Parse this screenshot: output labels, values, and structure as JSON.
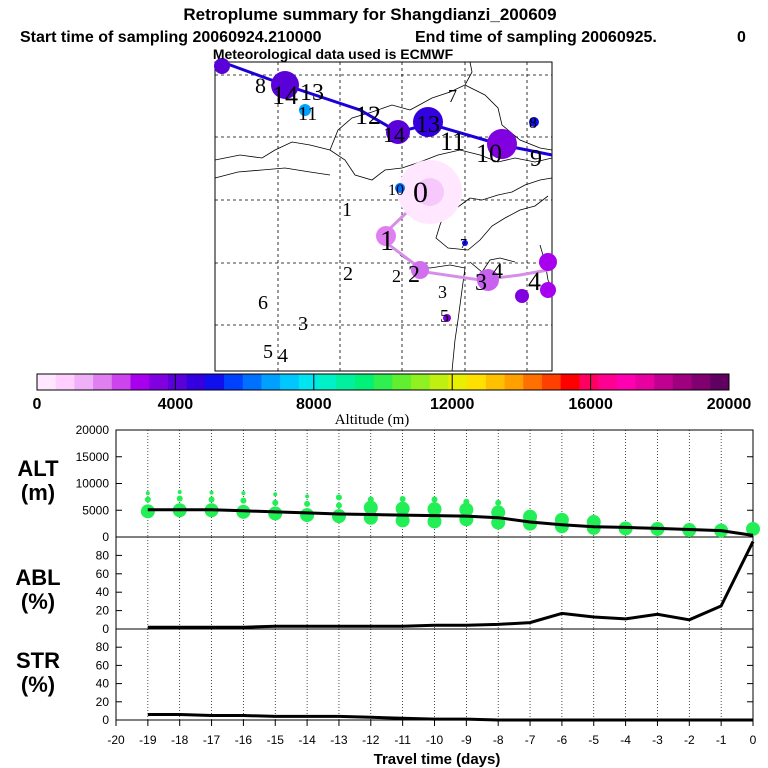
{
  "header": {
    "title": "Retroplume summary for Shangdianzi_200609",
    "start_label": "Start time of sampling 20060924.210000",
    "end_label": "End time of sampling 20060925.",
    "end_tail": "0",
    "met_label": "Meteorological data used is ECMWF"
  },
  "colors": {
    "main_track": "#1a00d9",
    "minor_track": "#d68fe8",
    "scale": [
      "#ffe8ff",
      "#ffd0ff",
      "#f0b0f8",
      "#e080f0",
      "#cc44ee",
      "#a800ee",
      "#8000e0",
      "#5a00d8",
      "#3500e0",
      "#1010ee",
      "#0040ff",
      "#0070ff",
      "#00a0ff",
      "#00c8ff",
      "#00e6f0",
      "#00f0c8",
      "#00f0a0",
      "#00f078",
      "#30f050",
      "#60f030",
      "#90f020",
      "#c0f010",
      "#e8f000",
      "#ffe000",
      "#ffc000",
      "#ffa000",
      "#ff7000",
      "#ff4000",
      "#ff0000",
      "#ff0060",
      "#ff0090",
      "#ff00b0",
      "#e800a0",
      "#c00090",
      "#a00080",
      "#800070",
      "#600060"
    ],
    "alt_dots": "#22ee55",
    "line": "#000000"
  },
  "map": {
    "main_labels": [
      "8",
      "14",
      "13",
      "12",
      "11",
      "11",
      "10",
      "9",
      "13",
      "8"
    ],
    "main_dots": [
      "day8",
      "day14",
      "day13",
      "day12",
      "day11",
      "day10",
      "day9"
    ],
    "minor_labels": [
      "0",
      "1",
      "2",
      "2",
      "3",
      "3",
      "4",
      "4",
      "5",
      "10",
      "11",
      "7",
      "7"
    ],
    "stray_labels": [
      "1",
      "2",
      "3",
      "4",
      "5",
      "6",
      "7"
    ]
  },
  "colorbar": {
    "ticks": [
      "0",
      "4000",
      "8000",
      "12000",
      "16000",
      "20000"
    ],
    "label": "Altitude (m)"
  },
  "panels": {
    "alt": {
      "label": "ALT",
      "unit": "(m)",
      "ticks": [
        "20000",
        "15000",
        "10000",
        "5000",
        "0"
      ]
    },
    "abl": {
      "label": "ABL",
      "unit": "(%)",
      "ticks": [
        "80",
        "60",
        "40",
        "20",
        "0"
      ]
    },
    "str": {
      "label": "STR",
      "unit": "(%)",
      "ticks": [
        "80",
        "60",
        "40",
        "20",
        "0"
      ]
    }
  },
  "xaxis": {
    "label": "Travel time (days)",
    "ticks": [
      "-20",
      "-19",
      "-18",
      "-17",
      "-16",
      "-15",
      "-14",
      "-13",
      "-12",
      "-11",
      "-10",
      "-9",
      "-8",
      "-7",
      "-6",
      "-5",
      "-4",
      "-3",
      "-2",
      "-1",
      "0"
    ]
  },
  "chart_data": [
    {
      "type": "line",
      "title": "ALT",
      "ylabel": "ALT (m)",
      "xlabel": "Travel time (days)",
      "xlim": [
        -20,
        0
      ],
      "ylim": [
        0,
        20000
      ],
      "x": [
        -19,
        -18,
        -17,
        -16,
        -15,
        -14,
        -13,
        -12,
        -11,
        -10,
        -9,
        -8,
        -7,
        -6,
        -5,
        -4,
        -3,
        -2,
        -1,
        0
      ],
      "series": [
        {
          "name": "Mean altitude",
          "values": [
            5100,
            5100,
            5100,
            4900,
            4700,
            4500,
            4300,
            4200,
            4100,
            4000,
            3900,
            3600,
            2800,
            2300,
            1900,
            1800,
            1600,
            1400,
            1200,
            300
          ]
        }
      ],
      "scatter": {
        "name": "Plume altitude distribution",
        "values": [
          [
            -19,
            4800
          ],
          [
            -19,
            7000
          ],
          [
            -19,
            8200
          ],
          [
            -18,
            5000
          ],
          [
            -18,
            7200
          ],
          [
            -18,
            8400
          ],
          [
            -17,
            5000
          ],
          [
            -17,
            7000
          ],
          [
            -17,
            8300
          ],
          [
            -16,
            4700
          ],
          [
            -16,
            6800
          ],
          [
            -16,
            8200
          ],
          [
            -15,
            4400
          ],
          [
            -15,
            6400
          ],
          [
            -15,
            8000
          ],
          [
            -14,
            4100
          ],
          [
            -14,
            6200
          ],
          [
            -14,
            7600
          ],
          [
            -13,
            3900
          ],
          [
            -13,
            5900
          ],
          [
            -13,
            7400
          ],
          [
            -12,
            3600
          ],
          [
            -12,
            5500
          ],
          [
            -12,
            7000
          ],
          [
            -11,
            3100
          ],
          [
            -11,
            5300
          ],
          [
            -11,
            7100
          ],
          [
            -10,
            2900
          ],
          [
            -10,
            5200
          ],
          [
            -10,
            7000
          ],
          [
            -9,
            3300
          ],
          [
            -9,
            5100
          ],
          [
            -9,
            6600
          ],
          [
            -8,
            2700
          ],
          [
            -8,
            4600
          ],
          [
            -8,
            6400
          ],
          [
            -7,
            2500
          ],
          [
            -7,
            3800
          ],
          [
            -6,
            2000
          ],
          [
            -6,
            3200
          ],
          [
            -5,
            1700
          ],
          [
            -5,
            2800
          ],
          [
            -4,
            1600
          ],
          [
            -3,
            1500
          ],
          [
            -2,
            1300
          ],
          [
            -1,
            1200
          ],
          [
            0,
            1500
          ]
        ]
      }
    },
    {
      "type": "line",
      "title": "ABL",
      "ylabel": "ABL (%)",
      "xlabel": "Travel time (days)",
      "xlim": [
        -20,
        0
      ],
      "ylim": [
        0,
        100
      ],
      "x": [
        -19,
        -18,
        -17,
        -16,
        -15,
        -14,
        -13,
        -12,
        -11,
        -10,
        -9,
        -8,
        -7,
        -6,
        -5,
        -4,
        -3,
        -2,
        -1,
        0
      ],
      "series": [
        {
          "name": "ABL fraction",
          "values": [
            2,
            2,
            2,
            2,
            3,
            3,
            3,
            3,
            3,
            4,
            4,
            5,
            7,
            17,
            13,
            11,
            16,
            10,
            25,
            95
          ]
        }
      ]
    },
    {
      "type": "line",
      "title": "STR",
      "ylabel": "STR (%)",
      "xlabel": "Travel time (days)",
      "xlim": [
        -20,
        0
      ],
      "ylim": [
        0,
        100
      ],
      "x": [
        -19,
        -18,
        -17,
        -16,
        -15,
        -14,
        -13,
        -12,
        -11,
        -10,
        -9,
        -8,
        -7,
        -6,
        -5,
        -4,
        -3,
        -2,
        -1,
        0
      ],
      "series": [
        {
          "name": "Stratospheric fraction",
          "values": [
            6,
            6,
            5,
            5,
            4,
            4,
            4,
            3,
            2,
            1,
            1,
            0,
            0,
            0,
            0,
            0,
            0,
            0,
            0,
            0
          ]
        }
      ]
    }
  ]
}
